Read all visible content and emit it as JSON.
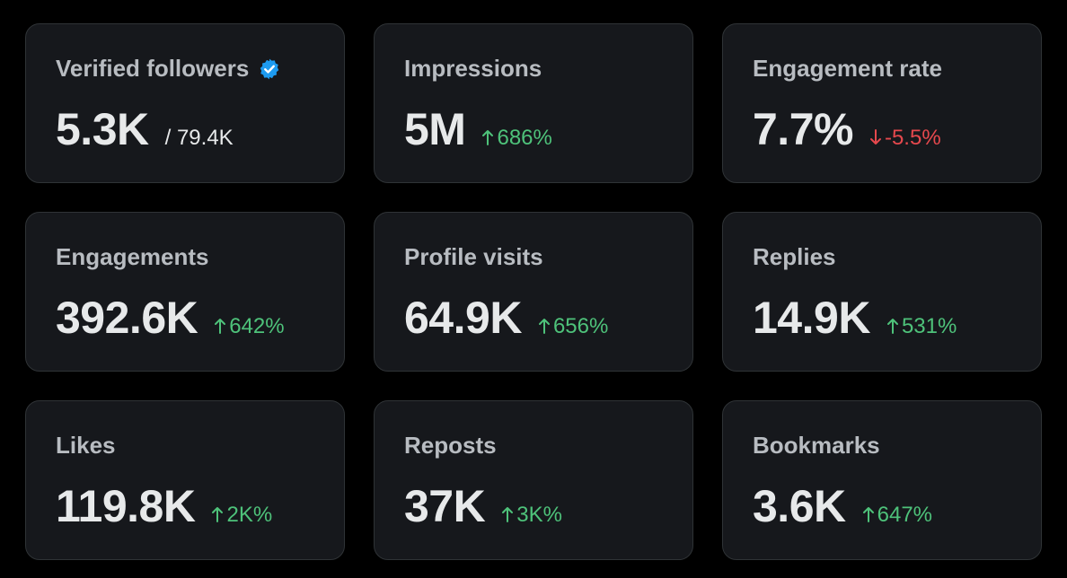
{
  "colors": {
    "background": "#000000",
    "card_background": "#16181c",
    "card_border": "#2f3336",
    "label": "#b8bcc1",
    "value": "#e7e9ea",
    "positive": "#4ec27a",
    "negative": "#e5484d",
    "verified_badge": "#1d9bf0"
  },
  "cards": [
    {
      "label": "Verified followers",
      "value": "5.3K",
      "secondary": "/ 79.4K",
      "icon": "verified-badge-icon"
    },
    {
      "label": "Impressions",
      "value": "5M",
      "change": "686%",
      "direction": "up"
    },
    {
      "label": "Engagement rate",
      "value": "7.7%",
      "change": "-5.5%",
      "direction": "down"
    },
    {
      "label": "Engagements",
      "value": "392.6K",
      "change": "642%",
      "direction": "up"
    },
    {
      "label": "Profile visits",
      "value": "64.9K",
      "change": "656%",
      "direction": "up"
    },
    {
      "label": "Replies",
      "value": "14.9K",
      "change": "531%",
      "direction": "up"
    },
    {
      "label": "Likes",
      "value": "119.8K",
      "change": "2K%",
      "direction": "up"
    },
    {
      "label": "Reposts",
      "value": "37K",
      "change": "3K%",
      "direction": "up"
    },
    {
      "label": "Bookmarks",
      "value": "3.6K",
      "change": "647%",
      "direction": "up"
    }
  ]
}
